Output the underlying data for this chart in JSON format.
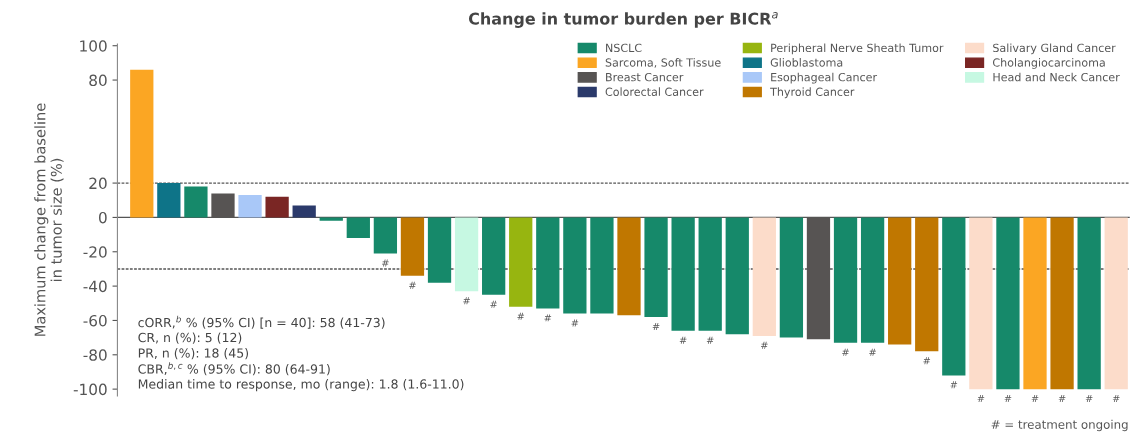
{
  "chart_data": {
    "type": "bar",
    "title": "Change in tumor burden per BICR$^{a}$",
    "ylabel": "Maximum change from baseline\nin tumor size (%)",
    "categories": [
      null,
      null,
      null,
      null,
      null,
      null,
      null,
      null,
      null,
      null,
      null,
      null,
      null,
      null,
      null,
      null,
      null,
      null,
      null,
      null,
      null,
      null,
      null,
      null,
      null,
      null,
      null,
      null,
      null,
      null,
      null,
      null,
      null,
      null,
      null,
      null,
      null
    ],
    "series": [
      {
        "name": "NSCLC",
        "color": "#16896a",
        "values": [
          null,
          null,
          18,
          null,
          null,
          null,
          null,
          -2,
          -12,
          -21,
          null,
          -38,
          null,
          -45,
          null,
          -53,
          -56,
          -56,
          null,
          -58,
          -66,
          -66,
          -68,
          null,
          -70,
          null,
          -73,
          -73,
          null,
          null,
          -92,
          null,
          -100,
          null,
          null,
          -100,
          null
        ],
        "value_labels": [
          null,
          null,
          null,
          null,
          null,
          null,
          null,
          null,
          null,
          "#",
          null,
          null,
          null,
          "#",
          null,
          "#",
          "#",
          null,
          null,
          "#",
          "#",
          "#",
          null,
          null,
          null,
          null,
          "#",
          "#",
          null,
          null,
          "#",
          null,
          "#",
          null,
          null,
          "#",
          null
        ]
      },
      {
        "name": "Sarcoma, Soft Tissue",
        "color": "#fba623",
        "values": [
          86,
          null,
          null,
          null,
          null,
          null,
          null,
          null,
          null,
          null,
          null,
          null,
          null,
          null,
          null,
          null,
          null,
          null,
          null,
          null,
          null,
          null,
          null,
          null,
          null,
          null,
          null,
          null,
          null,
          null,
          null,
          null,
          null,
          -100,
          null,
          null,
          null
        ],
        "value_labels": [
          null,
          null,
          null,
          null,
          null,
          null,
          null,
          null,
          null,
          null,
          null,
          null,
          null,
          null,
          null,
          null,
          null,
          null,
          null,
          null,
          null,
          null,
          null,
          null,
          null,
          null,
          null,
          null,
          null,
          null,
          null,
          null,
          null,
          "#",
          null,
          null,
          null
        ]
      },
      {
        "name": "Breast Cancer",
        "color": "#575453",
        "values": [
          null,
          null,
          null,
          14,
          null,
          null,
          null,
          null,
          null,
          null,
          null,
          null,
          null,
          null,
          null,
          null,
          null,
          null,
          null,
          null,
          null,
          null,
          null,
          null,
          null,
          -71,
          null,
          null,
          null,
          null,
          null,
          null,
          null,
          null,
          null,
          null,
          null
        ]
      },
      {
        "name": "Colorectal Cancer",
        "color": "#2b3a6b",
        "values": [
          null,
          null,
          null,
          null,
          null,
          null,
          7,
          null,
          null,
          null,
          null,
          null,
          null,
          null,
          null,
          null,
          null,
          null,
          null,
          null,
          null,
          null,
          null,
          null,
          null,
          null,
          null,
          null,
          null,
          null,
          null,
          null,
          null,
          null,
          null,
          null,
          null
        ]
      },
      {
        "name": "Peripheral Nerve Sheath Tumor",
        "color": "#97b510",
        "values": [
          null,
          null,
          null,
          null,
          null,
          null,
          null,
          null,
          null,
          null,
          null,
          null,
          null,
          null,
          -52,
          null,
          null,
          null,
          null,
          null,
          null,
          null,
          null,
          null,
          null,
          null,
          null,
          null,
          null,
          null,
          null,
          null,
          null,
          null,
          null,
          null,
          null
        ],
        "value_labels": [
          null,
          null,
          null,
          null,
          null,
          null,
          null,
          null,
          null,
          null,
          null,
          null,
          null,
          null,
          "#",
          null,
          null,
          null,
          null,
          null,
          null,
          null,
          null,
          null,
          null,
          null,
          null,
          null,
          null,
          null,
          null,
          null,
          null,
          null,
          null,
          null,
          null
        ]
      },
      {
        "name": "Glioblastoma",
        "color": "#0e7488",
        "values": [
          null,
          20,
          null,
          null,
          null,
          null,
          null,
          null,
          null,
          null,
          null,
          null,
          null,
          null,
          null,
          null,
          null,
          null,
          null,
          null,
          null,
          null,
          null,
          null,
          null,
          null,
          null,
          null,
          null,
          null,
          null,
          null,
          null,
          null,
          null,
          null,
          null
        ]
      },
      {
        "name": "Esophageal Cancer",
        "color": "#a9c8f8",
        "values": [
          null,
          null,
          null,
          null,
          13,
          null,
          null,
          null,
          null,
          null,
          null,
          null,
          null,
          null,
          null,
          null,
          null,
          null,
          null,
          null,
          null,
          null,
          null,
          null,
          null,
          null,
          null,
          null,
          null,
          null,
          null,
          null,
          null,
          null,
          null,
          null,
          null
        ]
      },
      {
        "name": "Thyroid Cancer",
        "color": "#c07700",
        "values": [
          null,
          null,
          null,
          null,
          null,
          null,
          null,
          null,
          null,
          null,
          -34,
          null,
          null,
          null,
          null,
          null,
          null,
          null,
          -57,
          null,
          null,
          null,
          null,
          null,
          null,
          null,
          null,
          null,
          -74,
          -78,
          null,
          null,
          null,
          null,
          -100,
          null,
          null
        ],
        "value_labels": [
          null,
          null,
          null,
          null,
          null,
          null,
          null,
          null,
          null,
          null,
          "#",
          null,
          null,
          null,
          null,
          null,
          null,
          null,
          null,
          null,
          null,
          null,
          null,
          null,
          null,
          null,
          null,
          null,
          null,
          "#",
          null,
          null,
          null,
          null,
          "#",
          null,
          null
        ]
      },
      {
        "name": "Salivary Gland Cancer",
        "color": "#fcdcca",
        "values": [
          null,
          null,
          null,
          null,
          null,
          null,
          null,
          null,
          null,
          null,
          null,
          null,
          null,
          null,
          null,
          null,
          null,
          null,
          null,
          null,
          null,
          null,
          null,
          -69,
          null,
          null,
          null,
          null,
          null,
          null,
          null,
          -100,
          null,
          null,
          null,
          null,
          -100
        ],
        "value_labels": [
          null,
          null,
          null,
          null,
          null,
          null,
          null,
          null,
          null,
          null,
          null,
          null,
          null,
          null,
          null,
          null,
          null,
          null,
          null,
          null,
          null,
          null,
          null,
          "#",
          null,
          null,
          null,
          null,
          null,
          null,
          null,
          "#",
          null,
          null,
          null,
          null,
          "#"
        ]
      },
      {
        "name": "Cholangiocarcinoma",
        "color": "#7a2624",
        "values": [
          null,
          null,
          null,
          null,
          null,
          12,
          null,
          null,
          null,
          null,
          null,
          null,
          null,
          null,
          null,
          null,
          null,
          null,
          null,
          null,
          null,
          null,
          null,
          null,
          null,
          null,
          null,
          null,
          null,
          null,
          null,
          null,
          null,
          null,
          null,
          null,
          null
        ]
      },
      {
        "name": "Head and Neck Cancer",
        "color": "#c6f8e2",
        "values": [
          null,
          null,
          null,
          null,
          null,
          null,
          null,
          null,
          null,
          null,
          null,
          null,
          -43,
          null,
          null,
          null,
          null,
          null,
          null,
          null,
          null,
          null,
          null,
          null,
          null,
          null,
          null,
          null,
          null,
          null,
          null,
          null,
          null,
          null,
          null,
          null,
          null
        ],
        "value_labels": [
          null,
          null,
          null,
          null,
          null,
          null,
          null,
          null,
          null,
          null,
          null,
          null,
          "#",
          null,
          null,
          null,
          null,
          null,
          null,
          null,
          null,
          null,
          null,
          null,
          null,
          null,
          null,
          null,
          null,
          null,
          null,
          null,
          null,
          null,
          null,
          null,
          null
        ]
      }
    ],
    "ylim": [
      -104,
      101
    ],
    "yticks": [
      -100,
      -80,
      -60,
      -40,
      -20,
      0,
      20,
      80,
      100
    ],
    "tick_labels": "y",
    "ref_lines": [
      {
        "axis": "y",
        "value": 20,
        "line_style": "dashed"
      },
      {
        "axis": "y",
        "value": 0,
        "line_style": "solid"
      },
      {
        "axis": "y",
        "value": -30,
        "line_style": "dashed"
      }
    ],
    "legend": "top right",
    "grid": false,
    "annotations": [
      "cORR,$^{b}$ % (95% CI) [n = 40]: 58 (41-73)",
      "CR, n (%): 5 (12)",
      "PR, n (%): 18 (45)",
      "CBR,$^{b,c}$ % (95% CI): 80 (64-91)",
      "Median time to response, mo (range): 1.8 (1.6-11.0)",
      "# = treatment ongoing"
    ]
  }
}
